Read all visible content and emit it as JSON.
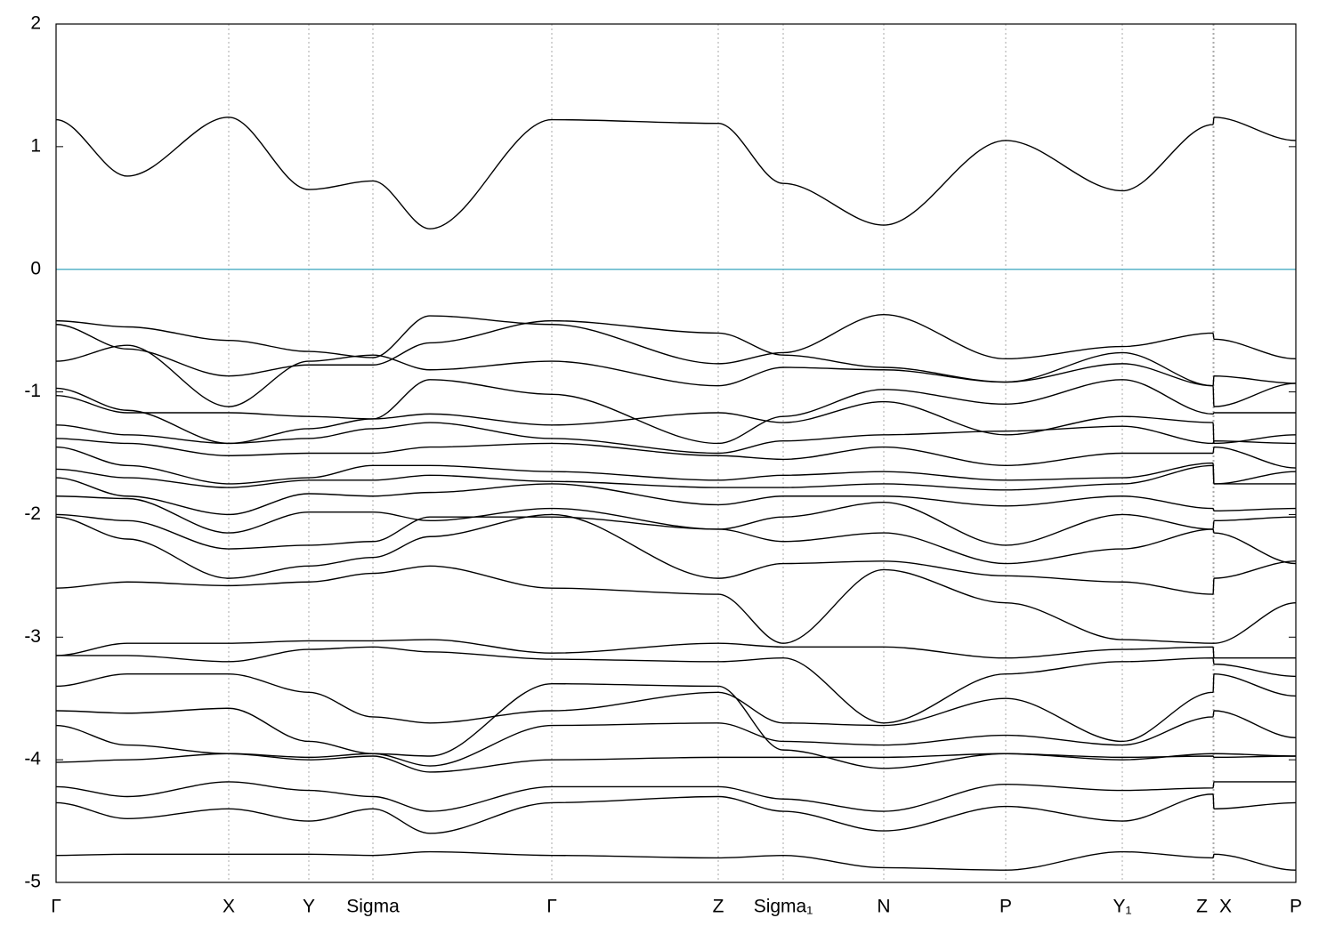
{
  "chart_data": {
    "type": "line",
    "x": [
      0,
      80,
      194,
      284,
      356,
      420,
      557,
      744,
      817,
      930,
      1067,
      1198,
      1300,
      1301,
      1393
    ],
    "xlim": [
      0,
      1393
    ],
    "xticks": [
      {
        "value": 0,
        "label": "Γ"
      },
      {
        "value": 194,
        "label": "X"
      },
      {
        "value": 284,
        "label": "Y"
      },
      {
        "value": 356,
        "label": "Sigma"
      },
      {
        "value": 557,
        "label": "Γ"
      },
      {
        "value": 744,
        "label": "Z"
      },
      {
        "value": 817,
        "label": "Sigma₁"
      },
      {
        "value": 930,
        "label": "N"
      },
      {
        "value": 1067,
        "label": "P"
      },
      {
        "value": 1198,
        "label": "Y₁"
      },
      {
        "value": 1300,
        "label": "Z"
      },
      {
        "value": 1301,
        "label": "X"
      },
      {
        "value": 1393,
        "label": "P"
      }
    ],
    "ylim": [
      -5,
      2
    ],
    "yticks": [
      -5,
      -4,
      -3,
      -2,
      -1,
      0,
      1,
      2
    ],
    "xgrid": true,
    "fermi_level": 0,
    "fermi_color": "#5ab4c8",
    "series": [
      {
        "color": "#000000",
        "values": [
          1.22,
          0.76,
          1.24,
          0.65,
          0.72,
          0.33,
          1.22,
          1.19,
          0.7,
          0.36,
          1.05,
          0.64,
          1.18,
          1.24,
          1.05
        ]
      },
      {
        "color": "#000000",
        "values": [
          -0.42,
          -0.47,
          -0.58,
          -0.67,
          -0.72,
          -0.38,
          -0.45,
          -0.77,
          -0.68,
          -0.37,
          -0.73,
          -0.63,
          -0.52,
          -0.57,
          -0.73
        ]
      },
      {
        "color": "#000000",
        "values": [
          -0.45,
          -0.65,
          -0.87,
          -0.78,
          -0.78,
          -0.6,
          -0.42,
          -0.52,
          -0.7,
          -0.8,
          -0.92,
          -0.77,
          -0.95,
          -0.87,
          -0.93
        ]
      },
      {
        "color": "#000000",
        "values": [
          -0.75,
          -0.62,
          -1.12,
          -0.75,
          -0.7,
          -0.82,
          -0.75,
          -0.95,
          -0.8,
          -0.82,
          -0.92,
          -0.68,
          -0.95,
          -1.12,
          -0.93
        ]
      },
      {
        "color": "#000000",
        "values": [
          -0.97,
          -1.15,
          -1.42,
          -1.3,
          -1.22,
          -0.9,
          -1.02,
          -1.42,
          -1.2,
          -0.98,
          -1.1,
          -0.9,
          -1.18,
          -1.17,
          -1.17
        ]
      },
      {
        "color": "#000000",
        "values": [
          -1.03,
          -1.17,
          -1.17,
          -1.2,
          -1.22,
          -1.18,
          -1.27,
          -1.17,
          -1.25,
          -1.08,
          -1.35,
          -1.2,
          -1.25,
          -1.42,
          -1.35
        ]
      },
      {
        "color": "#000000",
        "values": [
          -1.27,
          -1.35,
          -1.42,
          -1.38,
          -1.3,
          -1.25,
          -1.38,
          -1.5,
          -1.4,
          -1.35,
          -1.32,
          -1.28,
          -1.42,
          -1.4,
          -1.42
        ]
      },
      {
        "color": "#000000",
        "values": [
          -1.38,
          -1.42,
          -1.52,
          -1.5,
          -1.5,
          -1.45,
          -1.42,
          -1.52,
          -1.55,
          -1.45,
          -1.6,
          -1.5,
          -1.5,
          -1.45,
          -1.62
        ]
      },
      {
        "color": "#000000",
        "values": [
          -1.45,
          -1.6,
          -1.75,
          -1.7,
          -1.6,
          -1.6,
          -1.65,
          -1.72,
          -1.68,
          -1.65,
          -1.72,
          -1.7,
          -1.58,
          -1.75,
          -1.65
        ]
      },
      {
        "color": "#000000",
        "values": [
          -1.63,
          -1.7,
          -1.78,
          -1.72,
          -1.72,
          -1.68,
          -1.73,
          -1.78,
          -1.78,
          -1.75,
          -1.8,
          -1.75,
          -1.6,
          -1.75,
          -1.75
        ]
      },
      {
        "color": "#000000",
        "values": [
          -1.7,
          -1.85,
          -2.0,
          -1.83,
          -1.85,
          -1.82,
          -1.75,
          -1.92,
          -1.85,
          -1.85,
          -1.93,
          -1.85,
          -1.95,
          -1.97,
          -1.95
        ]
      },
      {
        "color": "#000000",
        "values": [
          -1.85,
          -1.87,
          -2.15,
          -1.98,
          -1.98,
          -2.05,
          -1.95,
          -2.12,
          -2.02,
          -1.9,
          -2.25,
          -2.0,
          -2.12,
          -2.05,
          -2.02
        ]
      },
      {
        "color": "#000000",
        "values": [
          -2.0,
          -2.05,
          -2.28,
          -2.25,
          -2.22,
          -2.02,
          -2.02,
          -2.12,
          -2.22,
          -2.15,
          -2.4,
          -2.28,
          -2.12,
          -2.15,
          -2.4
        ]
      },
      {
        "color": "#000000",
        "values": [
          -2.02,
          -2.2,
          -2.52,
          -2.42,
          -2.35,
          -2.18,
          -2.0,
          -2.52,
          -2.4,
          -2.38,
          -2.5,
          -2.55,
          -2.65,
          -2.52,
          -2.38
        ]
      },
      {
        "color": "#000000",
        "values": [
          -2.6,
          -2.55,
          -2.58,
          -2.55,
          -2.48,
          -2.42,
          -2.6,
          -2.65,
          -3.05,
          -2.45,
          -2.72,
          -3.02,
          -3.05,
          -3.05,
          -2.72
        ]
      },
      {
        "color": "#000000",
        "values": [
          -3.15,
          -3.05,
          -3.05,
          -3.03,
          -3.03,
          -3.02,
          -3.13,
          -3.05,
          -3.08,
          -3.08,
          -3.17,
          -3.1,
          -3.08,
          -3.17,
          -3.17
        ]
      },
      {
        "color": "#000000",
        "values": [
          -3.15,
          -3.15,
          -3.2,
          -3.1,
          -3.08,
          -3.12,
          -3.18,
          -3.2,
          -3.17,
          -3.7,
          -3.3,
          -3.2,
          -3.17,
          -3.22,
          -3.32
        ]
      },
      {
        "color": "#000000",
        "values": [
          -3.4,
          -3.3,
          -3.3,
          -3.45,
          -3.65,
          -3.7,
          -3.6,
          -3.45,
          -3.7,
          -3.72,
          -3.5,
          -3.85,
          -3.45,
          -3.3,
          -3.48
        ]
      },
      {
        "color": "#000000",
        "values": [
          -3.6,
          -3.62,
          -3.58,
          -3.85,
          -3.95,
          -4.05,
          -3.72,
          -3.7,
          -3.85,
          -3.88,
          -3.8,
          -3.88,
          -3.65,
          -3.6,
          -3.82
        ]
      },
      {
        "color": "#000000",
        "values": [
          -3.72,
          -3.88,
          -3.95,
          -3.98,
          -3.95,
          -3.97,
          -3.38,
          -3.4,
          -3.92,
          -4.07,
          -3.95,
          -4.0,
          -3.95,
          -3.95,
          -3.97
        ]
      },
      {
        "color": "#000000",
        "values": [
          -4.02,
          -4.0,
          -3.95,
          -4.0,
          -3.97,
          -4.1,
          -4.0,
          -3.98,
          -3.98,
          -3.98,
          -3.95,
          -3.98,
          -3.97,
          -3.98,
          -3.97
        ]
      },
      {
        "color": "#000000",
        "values": [
          -4.22,
          -4.3,
          -4.18,
          -4.25,
          -4.3,
          -4.42,
          -4.22,
          -4.22,
          -4.32,
          -4.42,
          -4.2,
          -4.25,
          -4.23,
          -4.18,
          -4.18
        ]
      },
      {
        "color": "#000000",
        "values": [
          -4.35,
          -4.48,
          -4.4,
          -4.5,
          -4.4,
          -4.6,
          -4.35,
          -4.3,
          -4.42,
          -4.58,
          -4.38,
          -4.5,
          -4.28,
          -4.4,
          -4.35
        ]
      },
      {
        "color": "#000000",
        "values": [
          -4.78,
          -4.77,
          -4.77,
          -4.77,
          -4.78,
          -4.75,
          -4.78,
          -4.8,
          -4.78,
          -4.88,
          -4.9,
          -4.75,
          -4.8,
          -4.77,
          -4.9
        ]
      }
    ]
  }
}
